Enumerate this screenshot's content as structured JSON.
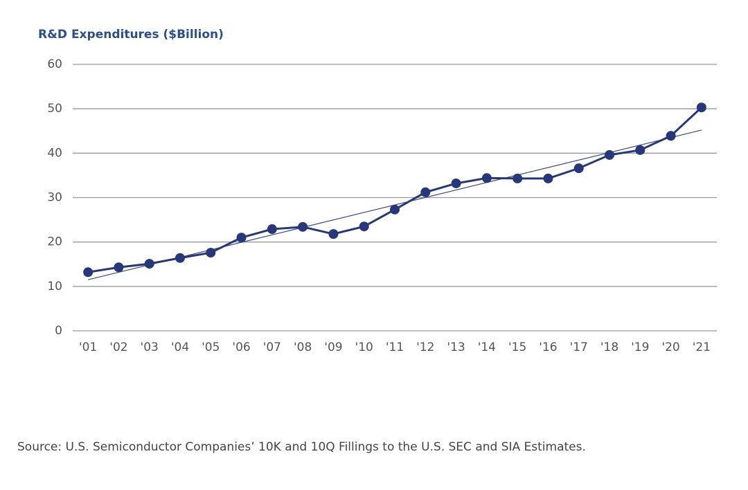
{
  "chart_data": {
    "type": "line",
    "title": "R&D Expenditures ($Billion)",
    "source": "Source: U.S. Semiconductor Companies’ 10K and 10Q Fillings to the U.S. SEC and SIA Estimates.",
    "categories": [
      "'01",
      "'02",
      "'03",
      "'04",
      "'05",
      "'06",
      "'07",
      "'08",
      "'09",
      "'10",
      "'11",
      "'12",
      "'13",
      "'14",
      "'15",
      "'16",
      "'17",
      "'18",
      "'19",
      "'20",
      "'21"
    ],
    "series": [
      {
        "color": "#26377a",
        "values": [
          13.2,
          14.3,
          15.1,
          16.4,
          17.6,
          21.0,
          22.9,
          23.4,
          21.8,
          23.5,
          27.3,
          31.2,
          33.2,
          34.4,
          34.3,
          34.3,
          36.6,
          39.6,
          40.7,
          43.9,
          50.3
        ]
      }
    ],
    "trend_line": {
      "color": "#3a4a8a",
      "start": 11.5,
      "end": 45.2
    },
    "ylim": [
      0,
      60
    ],
    "yticks": [
      0,
      10,
      20,
      30,
      40,
      50,
      60
    ],
    "grid": true
  }
}
